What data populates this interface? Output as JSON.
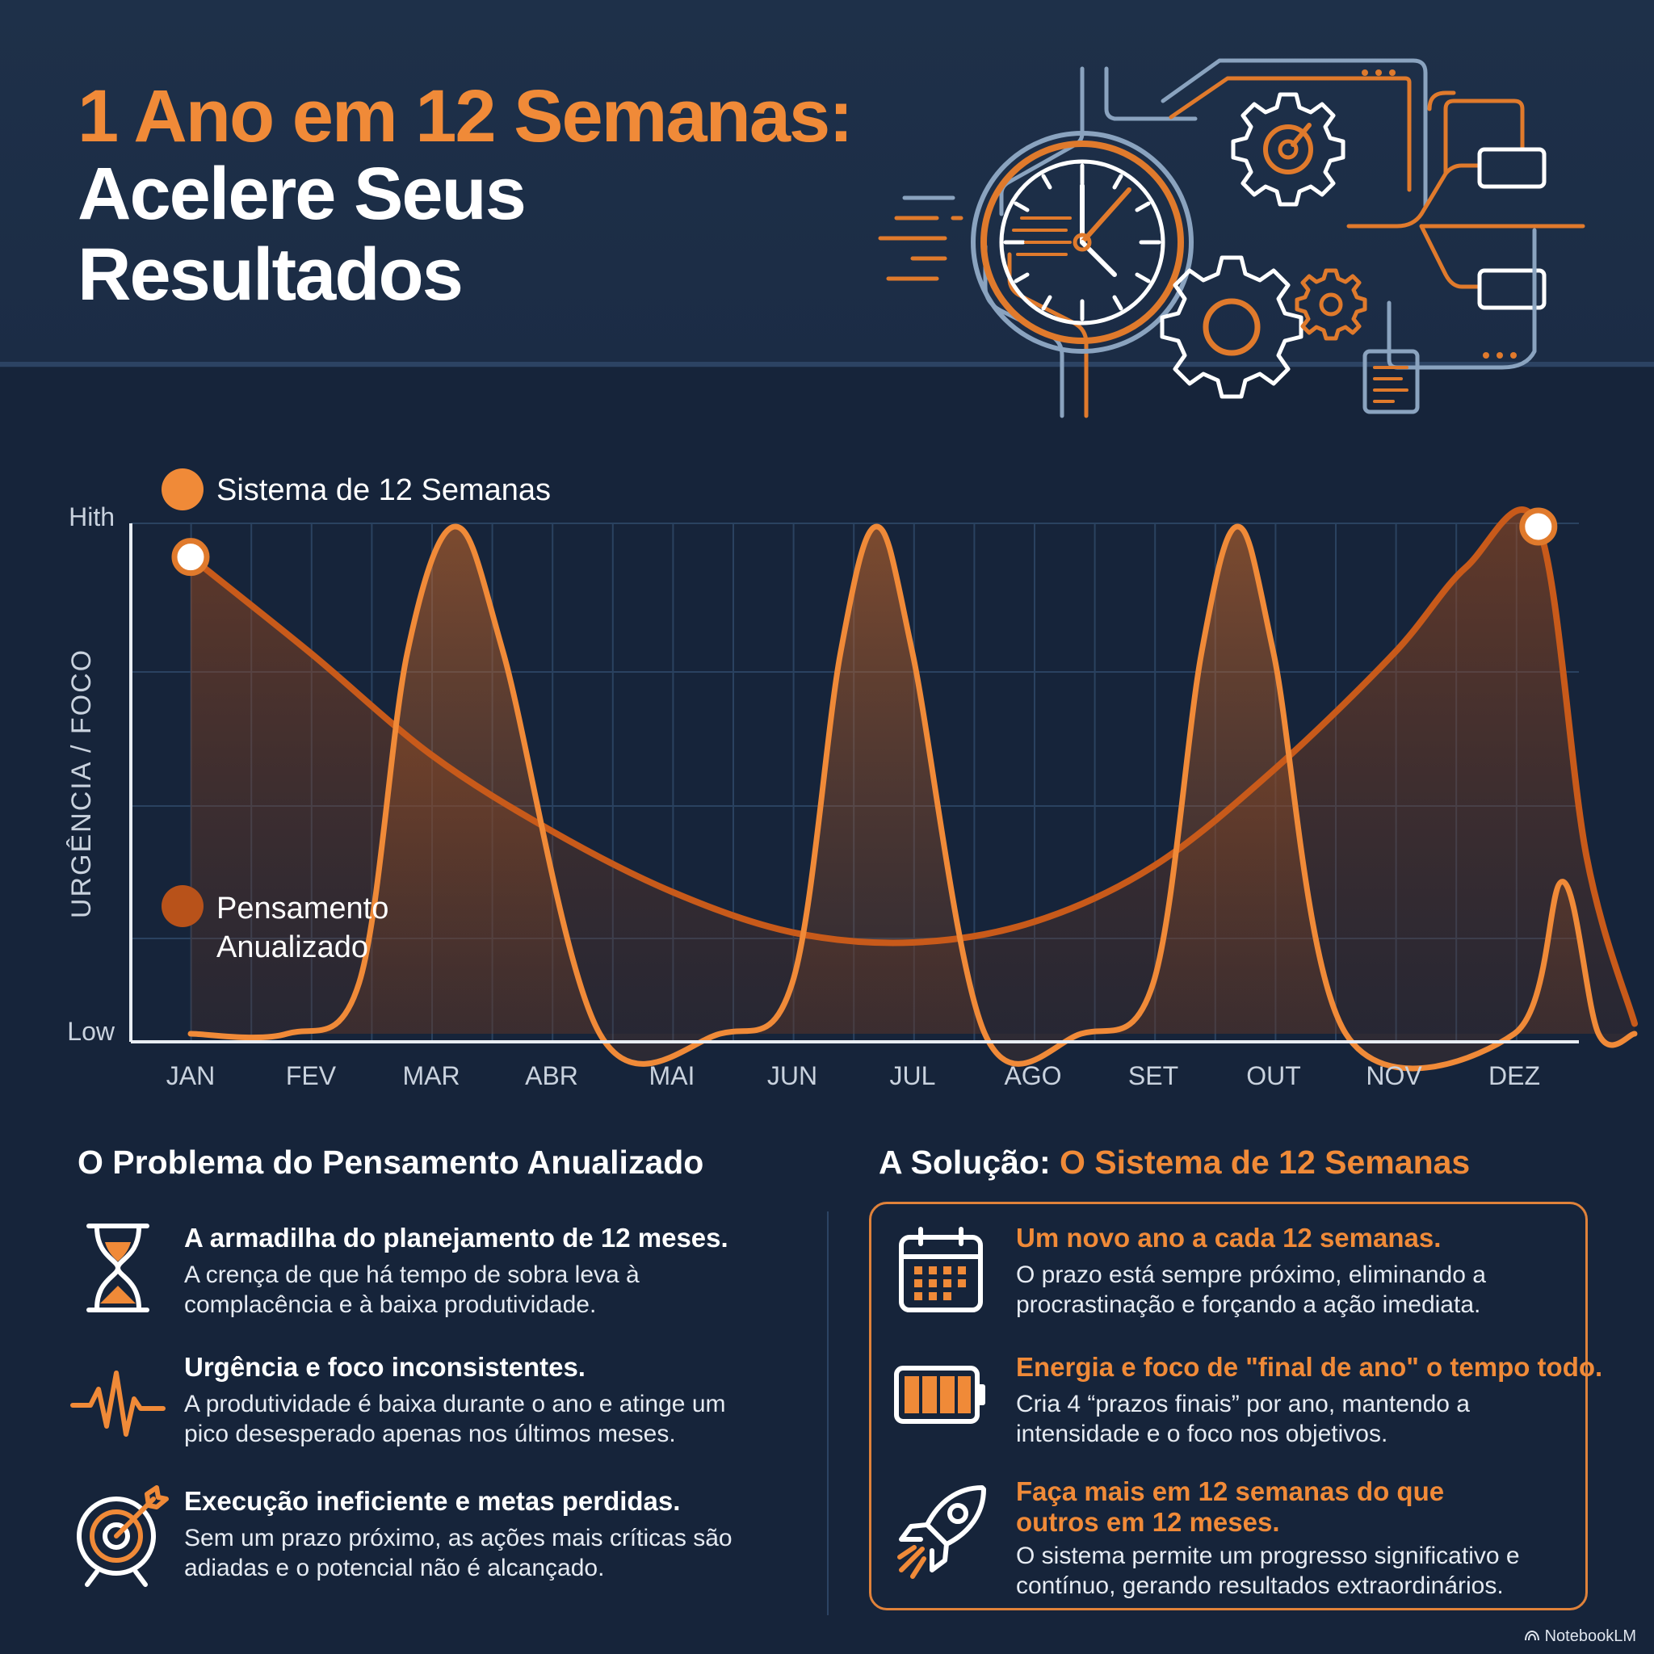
{
  "header": {
    "title_line1": "1 Ano em 12 Semanas:",
    "title_line2": "Acelere Seus",
    "title_line3": "Resultados"
  },
  "colors": {
    "background": "#16243a",
    "accent_orange": "#f08a38",
    "dark_orange": "#c85a1a",
    "grid": "#2e4666",
    "text": "#ffffff"
  },
  "chart_data": {
    "type": "line",
    "title": "",
    "xlabel": "",
    "ylabel": "URGÊNCIA / FOCO",
    "y_tick_labels": [
      "Low",
      "Hith"
    ],
    "ylim": [
      0,
      1
    ],
    "categories": [
      "JAN",
      "FEV",
      "MAR",
      "ABR",
      "MAI",
      "JUN",
      "JUL",
      "AGO",
      "SET",
      "OUT",
      "NOV",
      "DEZ"
    ],
    "grid": true,
    "series": [
      {
        "name": "Sistema de 12 Semanas",
        "color": "#f08a38",
        "marker": "orange-circle",
        "x": [
          0,
          0.8,
          1.4,
          1.8,
          2.2,
          2.6,
          3.4,
          4.4,
          5.0,
          5.4,
          5.7,
          6.0,
          6.6,
          7.4,
          8.0,
          8.4,
          8.7,
          9.0,
          9.6,
          11.0,
          11.4,
          11.7,
          12.0
        ],
        "values": [
          0,
          0,
          0.1,
          0.75,
          1.0,
          0.75,
          0,
          0,
          0.1,
          0.75,
          1.0,
          0.75,
          0,
          0,
          0.1,
          0.75,
          1.0,
          0.75,
          0,
          0,
          0.3,
          0,
          0
        ]
      },
      {
        "name": "Pensamento Anualizado",
        "color": "#c85a1a",
        "marker": "dark-orange-circle",
        "x": [
          0,
          1,
          2,
          3,
          4,
          5,
          6,
          7,
          8,
          9,
          10,
          10.6,
          11.2,
          11.6,
          12.0
        ],
        "values": [
          0.94,
          0.75,
          0.55,
          0.4,
          0.28,
          0.2,
          0.18,
          0.22,
          0.33,
          0.52,
          0.75,
          0.92,
          1.0,
          0.35,
          0.02
        ]
      }
    ],
    "highlight_points": [
      {
        "series": "Pensamento Anualizado",
        "x": 0,
        "value": 0.94
      },
      {
        "series": "Pensamento Anualizado",
        "x": 11.2,
        "value": 1.0
      }
    ],
    "legend": [
      {
        "label": "Sistema de 12 Semanas",
        "placement": "top-left"
      },
      {
        "label_lines": [
          "Pensamento",
          "Anualizado"
        ],
        "placement": "lower-left"
      }
    ]
  },
  "problem": {
    "title": "O Problema do Pensamento Anualizado",
    "items": [
      {
        "icon": "hourglass-icon",
        "title": "A armadilha do planejamento de 12 meses.",
        "body": "A crença de que há tempo de sobra leva à complacência e à baixa produtividade."
      },
      {
        "icon": "heartbeat-icon",
        "title": "Urgência e foco inconsistentes.",
        "body": "A produtividade é baixa durante o ano e atinge um pico desesperado apenas nos últimos meses."
      },
      {
        "icon": "target-icon",
        "title": "Execução ineficiente e metas perdidas.",
        "body": "Sem um prazo próximo, as ações mais críticas são adiadas e o potencial não é alcançado."
      }
    ]
  },
  "solution": {
    "title_prefix": "A Solução: ",
    "title_accent": "O Sistema de 12 Semanas",
    "items": [
      {
        "icon": "calendar-icon",
        "title": "Um novo ano a cada 12 semanas.",
        "body": "O prazo está sempre próximo, eliminando a procrastinação e forçando a ação imediata."
      },
      {
        "icon": "battery-icon",
        "title": "Energia e foco de \"final de ano\" o tempo todo.",
        "body": "Cria 4 “prazos finais” por ano, mantendo a intensidade e o foco nos objetivos."
      },
      {
        "icon": "rocket-icon",
        "title_line1": "Faça mais em 12 semanas do que",
        "title_line2": "outros em 12 meses.",
        "body": "O sistema permite um progresso significativo e contínuo, gerando resultados extraordinários."
      }
    ]
  },
  "brand": {
    "label": "NotebookLM",
    "icon": "notebooklm-icon"
  }
}
